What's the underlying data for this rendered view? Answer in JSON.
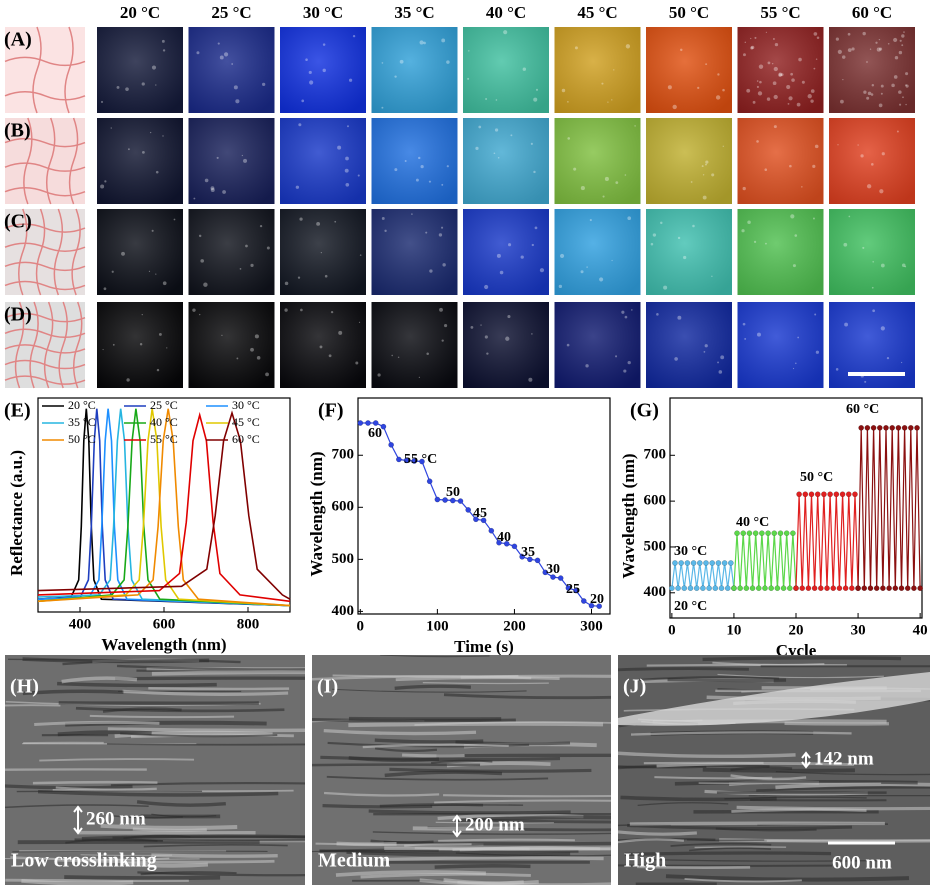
{
  "header": {
    "temperatures": [
      "20 °C",
      "25 °C",
      "30 °C",
      "35 °C",
      "40 °C",
      "45 °C",
      "50 °C",
      "55 °C",
      "60 °C"
    ]
  },
  "rows": [
    "(A)",
    "(B)",
    "(C)",
    "(D)"
  ],
  "chart_data": [
    {
      "type": "line",
      "panel": "(E)",
      "xlabel": "Wavelength (nm)",
      "ylabel": "Reflectance (a.u.)",
      "xlim": [
        300,
        900
      ],
      "xticks": [
        400,
        600,
        800
      ],
      "ylim": [
        0,
        1
      ],
      "legend": true,
      "series": [
        {
          "name": "20 °C",
          "color": "#000000",
          "x": [
            300,
            379,
            397,
            403,
            409,
            415,
            421,
            427,
            433,
            451,
            900
          ],
          "values": [
            0.06,
            0.07,
            0.15,
            0.4,
            0.8,
            0.95,
            0.8,
            0.4,
            0.15,
            0.06,
            0.03
          ]
        },
        {
          "name": "25 °C",
          "color": "#1f3fbf",
          "x": [
            300,
            401,
            420,
            427,
            434,
            440,
            447,
            453,
            460,
            479,
            900
          ],
          "values": [
            0.06,
            0.07,
            0.15,
            0.4,
            0.8,
            0.95,
            0.8,
            0.4,
            0.15,
            0.06,
            0.03
          ]
        },
        {
          "name": "30 °C",
          "color": "#1e90ff",
          "x": [
            300,
            422,
            445,
            452,
            460,
            467,
            475,
            482,
            490,
            512,
            900
          ],
          "values": [
            0.06,
            0.07,
            0.15,
            0.4,
            0.8,
            0.95,
            0.8,
            0.4,
            0.15,
            0.06,
            0.03
          ]
        },
        {
          "name": "35 °C",
          "color": "#26b5e0",
          "x": [
            300,
            446,
            472,
            480,
            489,
            497,
            506,
            514,
            523,
            548,
            900
          ],
          "values": [
            0.07,
            0.08,
            0.15,
            0.4,
            0.8,
            0.95,
            0.8,
            0.4,
            0.15,
            0.06,
            0.03
          ]
        },
        {
          "name": "40 °C",
          "color": "#18a818",
          "x": [
            300,
            476,
            505,
            514,
            524,
            533,
            543,
            552,
            562,
            590,
            900
          ],
          "values": [
            0.05,
            0.08,
            0.15,
            0.4,
            0.8,
            0.95,
            0.8,
            0.4,
            0.15,
            0.06,
            0.03
          ]
        },
        {
          "name": "45 °C",
          "color": "#e0c800",
          "x": [
            300,
            509,
            541,
            551,
            562,
            572,
            583,
            593,
            604,
            635,
            900
          ],
          "values": [
            0.05,
            0.08,
            0.15,
            0.4,
            0.8,
            0.95,
            0.8,
            0.4,
            0.15,
            0.06,
            0.03
          ]
        },
        {
          "name": "50 °C",
          "color": "#f08a00",
          "x": [
            300,
            538,
            574,
            586,
            598,
            610,
            622,
            634,
            646,
            682,
            900
          ],
          "values": [
            0.05,
            0.08,
            0.15,
            0.4,
            0.8,
            0.95,
            0.8,
            0.4,
            0.15,
            0.06,
            0.03
          ]
        },
        {
          "name": "55 °C",
          "color": "#e00000",
          "x": [
            300,
            589,
            637,
            653,
            669,
            685,
            701,
            717,
            733,
            781,
            900
          ],
          "values": [
            0.08,
            0.1,
            0.18,
            0.42,
            0.8,
            0.92,
            0.8,
            0.42,
            0.18,
            0.08,
            0.05
          ]
        },
        {
          "name": "60 °C",
          "color": "#800000",
          "x": [
            300,
            642,
            702,
            722,
            742,
            762,
            782,
            802,
            822,
            882,
            900
          ],
          "values": [
            0.1,
            0.12,
            0.2,
            0.45,
            0.8,
            0.93,
            0.8,
            0.45,
            0.2,
            0.08,
            0.06
          ]
        }
      ]
    },
    {
      "type": "line",
      "panel": "(F)",
      "xlabel": "Time (s)",
      "ylabel": "Wavelength (nm)",
      "xlim": [
        -3,
        324
      ],
      "xticks": [
        0,
        100,
        200,
        300
      ],
      "ylim": [
        395,
        810
      ],
      "yticks": [
        400,
        500,
        600,
        700
      ],
      "markers": true,
      "annotations": [
        "60",
        "55 °C",
        "50",
        "45",
        "40",
        "35",
        "30",
        "25",
        "20"
      ],
      "series": [
        {
          "color": "#2f45e0",
          "x": [
            0,
            10,
            20,
            30,
            40,
            50,
            60,
            70,
            80,
            90,
            100,
            110,
            120,
            130,
            140,
            150,
            160,
            170,
            180,
            190,
            200,
            210,
            220,
            230,
            240,
            250,
            260,
            270,
            280,
            290,
            300,
            310
          ],
          "values": [
            762,
            762,
            762,
            755,
            720,
            692,
            690,
            689,
            688,
            650,
            615,
            614,
            613,
            612,
            595,
            577,
            575,
            555,
            532,
            530,
            525,
            505,
            500,
            498,
            475,
            466,
            464,
            445,
            440,
            420,
            411,
            410
          ]
        }
      ]
    },
    {
      "type": "line",
      "panel": "(G)",
      "xlabel": "Cycle",
      "ylabel": "Wavelength (nm)",
      "xlim": [
        -0.3,
        40.3
      ],
      "xticks": [
        0,
        10,
        20,
        30,
        40
      ],
      "ylim": [
        345,
        825
      ],
      "yticks": [
        400,
        500,
        600,
        700
      ],
      "markers": true,
      "annotations": [
        "30 °C",
        "20 °C",
        "40 °C",
        "50 °C",
        "60 °C"
      ],
      "series": [
        {
          "color": "#5bb8e8",
          "x": [
            0,
            0.5,
            1,
            1.5,
            2,
            2.5,
            3,
            3.5,
            4,
            4.5,
            5,
            5.5,
            6,
            6.5,
            7,
            7.5,
            8,
            8.5,
            9,
            9.5,
            10
          ],
          "values": [
            410,
            465,
            410,
            465,
            410,
            465,
            410,
            465,
            410,
            465,
            410,
            465,
            410,
            465,
            410,
            465,
            410,
            465,
            410,
            465,
            410
          ]
        },
        {
          "color": "#5cd84a",
          "x": [
            10,
            10.5,
            11,
            11.5,
            12,
            12.5,
            13,
            13.5,
            14,
            14.5,
            15,
            15.5,
            16,
            16.5,
            17,
            17.5,
            18,
            18.5,
            19,
            19.5,
            20
          ],
          "values": [
            410,
            530,
            410,
            530,
            410,
            530,
            410,
            530,
            410,
            530,
            410,
            530,
            410,
            530,
            410,
            530,
            410,
            530,
            410,
            530,
            410
          ]
        },
        {
          "color": "#e02020",
          "x": [
            20,
            20.5,
            21,
            21.5,
            22,
            22.5,
            23,
            23.5,
            24,
            24.5,
            25,
            25.5,
            26,
            26.5,
            27,
            27.5,
            28,
            28.5,
            29,
            29.5,
            30
          ],
          "values": [
            410,
            615,
            410,
            615,
            410,
            615,
            410,
            615,
            410,
            615,
            410,
            615,
            410,
            615,
            410,
            615,
            410,
            615,
            410,
            615,
            410
          ]
        },
        {
          "color": "#8b1010",
          "x": [
            30,
            30.5,
            31,
            31.5,
            32,
            32.5,
            33,
            33.5,
            34,
            34.5,
            35,
            35.5,
            36,
            36.5,
            37,
            37.5,
            38,
            38.5,
            39,
            39.5,
            40
          ],
          "values": [
            410,
            760,
            410,
            760,
            410,
            760,
            410,
            760,
            410,
            760,
            410,
            760,
            410,
            760,
            410,
            760,
            410,
            760,
            410,
            760,
            410
          ]
        }
      ]
    }
  ],
  "sem": [
    {
      "panel": "(H)",
      "caption": "Low crosslinking",
      "spacing": "260 nm"
    },
    {
      "panel": "(I)",
      "caption": "Medium",
      "spacing": "200 nm"
    },
    {
      "panel": "(J)",
      "caption": "High",
      "spacing": "142 nm",
      "scale_bar": "600 nm"
    }
  ]
}
